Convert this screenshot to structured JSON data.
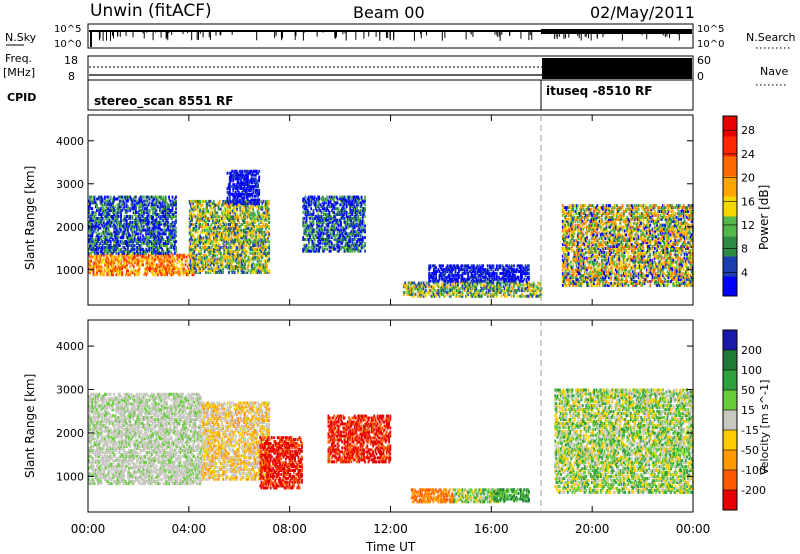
{
  "header": {
    "station": "Unwin (fitACF)",
    "beam": "Beam 00",
    "date": "02/May/2011"
  },
  "status_panel": {
    "nsky_label": "N.Sky",
    "nsky_ticks": [
      "10^5",
      "10^0"
    ],
    "nsearch_label": "N.Search",
    "freq_label": "Freq.",
    "freq_unit": "[MHz]",
    "freq_ticks": [
      "18",
      "8"
    ],
    "nave_label": "Nave",
    "nave_ticks": [
      "60",
      "0"
    ],
    "cpid_label": "CPID",
    "cpid_entries": [
      {
        "name": "stereo_scan 8551 RF",
        "start_hour": 0
      },
      {
        "name": "ituseq -8510 RF",
        "start_hour": 18
      }
    ]
  },
  "colors": {
    "power_scale": [
      "#0000ff",
      "#1c3fb0",
      "#2f8a43",
      "#54b84a",
      "#f5d700",
      "#ffa500",
      "#ff6a00",
      "#ff2600",
      "#e80000"
    ],
    "velocity_scale": [
      "#1a1aa8",
      "#1e7a36",
      "#2ea03c",
      "#67cc3a",
      "#c8c8c0",
      "#ffcc00",
      "#ff9a00",
      "#ff5a00",
      "#e80000"
    ]
  },
  "chart_data": [
    {
      "type": "heatmap",
      "panel": "power",
      "xlabel": "",
      "ylabel": "Slant Range [km]",
      "x_range_hours": [
        0,
        24
      ],
      "ylim": [
        180,
        4600
      ],
      "yticks": [
        1000,
        2000,
        3000,
        4000
      ],
      "colorbar": {
        "label": "Power [dB]",
        "range": [
          0,
          30
        ],
        "ticks": [
          "4",
          "8",
          "12",
          "16",
          "20",
          "24",
          "28"
        ]
      },
      "regions": [
        {
          "hours": [
            0,
            4.2
          ],
          "range_km": [
            850,
            1350
          ],
          "level": "orange-red"
        },
        {
          "hours": [
            0,
            3.5
          ],
          "range_km": [
            1350,
            2700
          ],
          "level": "blue-green"
        },
        {
          "hours": [
            4,
            7.2
          ],
          "range_km": [
            900,
            2600
          ],
          "level": "green-orange"
        },
        {
          "hours": [
            5.5,
            6.8
          ],
          "range_km": [
            2500,
            3300
          ],
          "level": "blue"
        },
        {
          "hours": [
            8.5,
            11
          ],
          "range_km": [
            1400,
            2700
          ],
          "level": "blue-green"
        },
        {
          "hours": [
            12.5,
            18
          ],
          "range_km": [
            350,
            700
          ],
          "level": "green-orange"
        },
        {
          "hours": [
            13.5,
            17.5
          ],
          "range_km": [
            700,
            1100
          ],
          "level": "blue"
        },
        {
          "hours": [
            18.8,
            24
          ],
          "range_km": [
            600,
            2500
          ],
          "level": "mixed"
        }
      ]
    },
    {
      "type": "heatmap",
      "panel": "velocity",
      "xlabel": "Time UT",
      "ylabel": "Slant Range [km]",
      "x_range_hours": [
        0,
        24
      ],
      "xticks": [
        "00:00",
        "04:00",
        "08:00",
        "12:00",
        "16:00",
        "20:00",
        "00:00"
      ],
      "ylim": [
        180,
        4600
      ],
      "yticks": [
        1000,
        2000,
        3000,
        4000
      ],
      "colorbar": {
        "label": "Velocity [m s^-1]",
        "ticks": [
          "200",
          "100",
          "50",
          "15",
          "-15",
          "-50",
          "-100",
          "-200"
        ]
      },
      "regions": [
        {
          "hours": [
            0,
            4.5
          ],
          "range_km": [
            800,
            2900
          ],
          "velocity": "-15 to 15"
        },
        {
          "hours": [
            4.5,
            7.2
          ],
          "range_km": [
            900,
            2700
          ],
          "velocity": "-50 to 15"
        },
        {
          "hours": [
            6.8,
            8.5
          ],
          "range_km": [
            700,
            1900
          ],
          "velocity": "-200"
        },
        {
          "hours": [
            9.5,
            12
          ],
          "range_km": [
            1300,
            2400
          ],
          "velocity": "-200"
        },
        {
          "hours": [
            12.8,
            14.5
          ],
          "range_km": [
            380,
            700
          ],
          "velocity": "-100"
        },
        {
          "hours": [
            14.5,
            16.5
          ],
          "range_km": [
            380,
            700
          ],
          "velocity": "-15 to 50"
        },
        {
          "hours": [
            16,
            17.5
          ],
          "range_km": [
            400,
            700
          ],
          "velocity": "50"
        },
        {
          "hours": [
            18.5,
            24
          ],
          "range_km": [
            600,
            3000
          ],
          "velocity": "-15 to 50"
        }
      ]
    }
  ]
}
